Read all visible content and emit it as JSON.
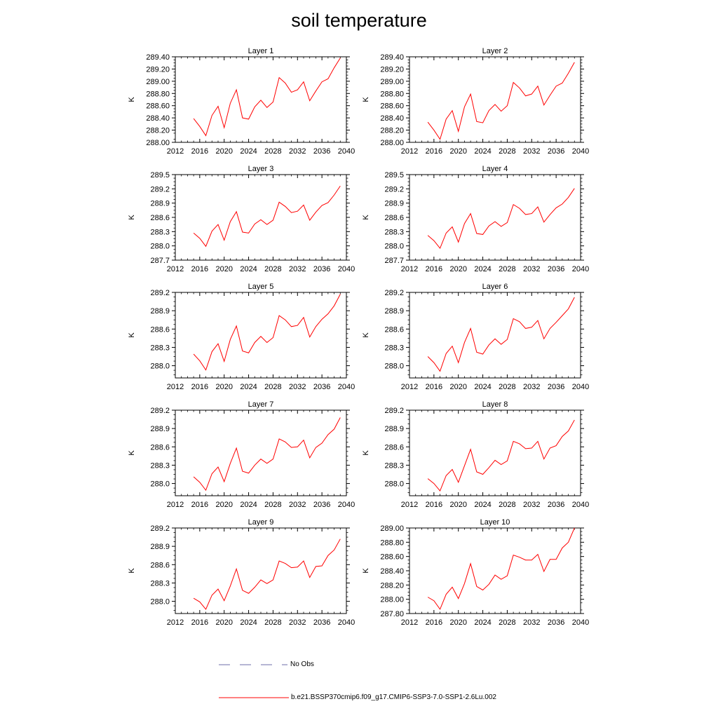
{
  "title": "soil temperature",
  "legend": {
    "obs_label": "No Obs",
    "obs_color": "#6e6ea8",
    "model_label": "b.e21.BSSP370cmip6.f09_g17.CMIP6-SSP3-7.0-SSP1-2.6Lu.002",
    "model_color": "#ff0000"
  },
  "chart_data": [
    {
      "type": "line",
      "title": "Layer 1",
      "ylabel": "K",
      "xlim": [
        2012,
        2040
      ],
      "xticks": [
        "2012",
        "2016",
        "2020",
        "2024",
        "2028",
        "2032",
        "2036",
        "2040"
      ],
      "ylim": [
        288.0,
        289.4
      ],
      "yticks": [
        "288.00",
        "288.20",
        "288.40",
        "288.60",
        "288.80",
        "289.00",
        "289.20",
        "289.40"
      ],
      "series": [
        {
          "x": [
            2015,
            2016,
            2017,
            2018,
            2019,
            2020,
            2021,
            2022,
            2023,
            2024,
            2025,
            2026,
            2027,
            2028,
            2029,
            2030,
            2031,
            2032,
            2033,
            2034,
            2035,
            2036,
            2037,
            2038,
            2039
          ],
          "y": [
            288.39,
            288.26,
            288.11,
            288.44,
            288.59,
            288.24,
            288.64,
            288.86,
            288.4,
            288.38,
            288.58,
            288.69,
            288.57,
            288.66,
            289.06,
            288.97,
            288.82,
            288.86,
            288.99,
            288.68,
            288.84,
            288.99,
            289.04,
            289.22,
            289.38
          ]
        }
      ]
    },
    {
      "type": "line",
      "title": "Layer 2",
      "ylabel": "K",
      "xlim": [
        2012,
        2040
      ],
      "xticks": [
        "2012",
        "2016",
        "2020",
        "2024",
        "2028",
        "2032",
        "2036",
        "2040"
      ],
      "ylim": [
        288.0,
        289.4
      ],
      "yticks": [
        "288.00",
        "288.20",
        "288.40",
        "288.60",
        "288.80",
        "289.00",
        "289.20",
        "289.40"
      ],
      "series": [
        {
          "x": [
            2015,
            2016,
            2017,
            2018,
            2019,
            2020,
            2021,
            2022,
            2023,
            2024,
            2025,
            2026,
            2027,
            2028,
            2029,
            2030,
            2031,
            2032,
            2033,
            2034,
            2035,
            2036,
            2037,
            2038,
            2039
          ],
          "y": [
            288.33,
            288.2,
            288.05,
            288.38,
            288.52,
            288.18,
            288.58,
            288.79,
            288.34,
            288.32,
            288.52,
            288.62,
            288.51,
            288.6,
            288.98,
            288.89,
            288.76,
            288.79,
            288.92,
            288.61,
            288.77,
            288.92,
            288.97,
            289.13,
            289.31
          ]
        }
      ]
    },
    {
      "type": "line",
      "title": "Layer 3",
      "ylabel": "K",
      "xlim": [
        2012,
        2040
      ],
      "xticks": [
        "2012",
        "2016",
        "2020",
        "2024",
        "2028",
        "2032",
        "2036",
        "2040"
      ],
      "ylim": [
        287.7,
        289.5
      ],
      "yticks": [
        "287.7",
        "288.0",
        "288.3",
        "288.6",
        "288.9",
        "289.2",
        "289.5"
      ],
      "series": [
        {
          "x": [
            2015,
            2016,
            2017,
            2018,
            2019,
            2020,
            2021,
            2022,
            2023,
            2024,
            2025,
            2026,
            2027,
            2028,
            2029,
            2030,
            2031,
            2032,
            2033,
            2034,
            2035,
            2036,
            2037,
            2038,
            2039
          ],
          "y": [
            288.27,
            288.16,
            287.99,
            288.31,
            288.45,
            288.12,
            288.51,
            288.72,
            288.29,
            288.27,
            288.46,
            288.55,
            288.45,
            288.54,
            288.92,
            288.83,
            288.7,
            288.73,
            288.86,
            288.54,
            288.71,
            288.85,
            288.91,
            289.07,
            289.26
          ]
        }
      ]
    },
    {
      "type": "line",
      "title": "Layer 4",
      "ylabel": "K",
      "xlim": [
        2012,
        2040
      ],
      "xticks": [
        "2012",
        "2016",
        "2020",
        "2024",
        "2028",
        "2032",
        "2036",
        "2040"
      ],
      "ylim": [
        287.7,
        289.5
      ],
      "yticks": [
        "287.7",
        "288.0",
        "288.3",
        "288.6",
        "288.9",
        "289.2",
        "289.5"
      ],
      "series": [
        {
          "x": [
            2015,
            2016,
            2017,
            2018,
            2019,
            2020,
            2021,
            2022,
            2023,
            2024,
            2025,
            2026,
            2027,
            2028,
            2029,
            2030,
            2031,
            2032,
            2033,
            2034,
            2035,
            2036,
            2037,
            2038,
            2039
          ],
          "y": [
            288.22,
            288.11,
            287.95,
            288.27,
            288.4,
            288.08,
            288.47,
            288.68,
            288.26,
            288.24,
            288.42,
            288.51,
            288.41,
            288.49,
            288.87,
            288.79,
            288.66,
            288.68,
            288.82,
            288.5,
            288.66,
            288.8,
            288.88,
            289.02,
            289.21
          ]
        }
      ]
    },
    {
      "type": "line",
      "title": "Layer 5",
      "ylabel": "K",
      "xlim": [
        2012,
        2040
      ],
      "xticks": [
        "2012",
        "2016",
        "2020",
        "2024",
        "2028",
        "2032",
        "2036",
        "2040"
      ],
      "ylim": [
        287.8,
        289.2
      ],
      "yticks": [
        "288.0",
        "288.3",
        "288.6",
        "288.9",
        "289.2"
      ],
      "series": [
        {
          "x": [
            2015,
            2016,
            2017,
            2018,
            2019,
            2020,
            2021,
            2022,
            2023,
            2024,
            2025,
            2026,
            2027,
            2028,
            2029,
            2030,
            2031,
            2032,
            2033,
            2034,
            2035,
            2036,
            2037,
            2038,
            2039
          ],
          "y": [
            288.19,
            288.08,
            287.93,
            288.23,
            288.36,
            288.07,
            288.43,
            288.65,
            288.24,
            288.21,
            288.38,
            288.48,
            288.38,
            288.46,
            288.82,
            288.75,
            288.64,
            288.66,
            288.79,
            288.47,
            288.64,
            288.76,
            288.85,
            288.98,
            289.17
          ]
        }
      ]
    },
    {
      "type": "line",
      "title": "Layer 6",
      "ylabel": "K",
      "xlim": [
        2012,
        2040
      ],
      "xticks": [
        "2012",
        "2016",
        "2020",
        "2024",
        "2028",
        "2032",
        "2036",
        "2040"
      ],
      "ylim": [
        287.8,
        289.2
      ],
      "yticks": [
        "288.0",
        "288.3",
        "288.6",
        "288.9",
        "289.2"
      ],
      "series": [
        {
          "x": [
            2015,
            2016,
            2017,
            2018,
            2019,
            2020,
            2021,
            2022,
            2023,
            2024,
            2025,
            2026,
            2027,
            2028,
            2029,
            2030,
            2031,
            2032,
            2033,
            2034,
            2035,
            2036,
            2037,
            2038,
            2039
          ],
          "y": [
            288.15,
            288.05,
            287.91,
            288.2,
            288.32,
            288.05,
            288.38,
            288.61,
            288.22,
            288.19,
            288.34,
            288.44,
            288.35,
            288.43,
            288.77,
            288.72,
            288.61,
            288.63,
            288.74,
            288.44,
            288.61,
            288.71,
            288.82,
            288.93,
            289.12
          ]
        }
      ]
    },
    {
      "type": "line",
      "title": "Layer 7",
      "ylabel": "K",
      "xlim": [
        2012,
        2040
      ],
      "xticks": [
        "2012",
        "2016",
        "2020",
        "2024",
        "2028",
        "2032",
        "2036",
        "2040"
      ],
      "ylim": [
        287.8,
        289.2
      ],
      "yticks": [
        "288.0",
        "288.3",
        "288.6",
        "288.9",
        "289.2"
      ],
      "series": [
        {
          "x": [
            2015,
            2016,
            2017,
            2018,
            2019,
            2020,
            2021,
            2022,
            2023,
            2024,
            2025,
            2026,
            2027,
            2028,
            2029,
            2030,
            2031,
            2032,
            2033,
            2034,
            2035,
            2036,
            2037,
            2038,
            2039
          ],
          "y": [
            288.11,
            288.02,
            287.89,
            288.16,
            288.27,
            288.03,
            288.33,
            288.58,
            288.2,
            288.17,
            288.3,
            288.4,
            288.33,
            288.4,
            288.73,
            288.68,
            288.59,
            288.6,
            288.71,
            288.42,
            288.59,
            288.66,
            288.8,
            288.89,
            289.08
          ]
        }
      ]
    },
    {
      "type": "line",
      "title": "Layer 8",
      "ylabel": "K",
      "xlim": [
        2012,
        2040
      ],
      "xticks": [
        "2012",
        "2016",
        "2020",
        "2024",
        "2028",
        "2032",
        "2036",
        "2040"
      ],
      "ylim": [
        287.8,
        289.2
      ],
      "yticks": [
        "288.0",
        "288.3",
        "288.6",
        "288.9",
        "289.2"
      ],
      "series": [
        {
          "x": [
            2015,
            2016,
            2017,
            2018,
            2019,
            2020,
            2021,
            2022,
            2023,
            2024,
            2025,
            2026,
            2027,
            2028,
            2029,
            2030,
            2031,
            2032,
            2033,
            2034,
            2035,
            2036,
            2037,
            2038,
            2039
          ],
          "y": [
            288.08,
            288.0,
            287.88,
            288.13,
            288.23,
            288.02,
            288.29,
            288.56,
            288.19,
            288.15,
            288.26,
            288.38,
            288.31,
            288.37,
            288.69,
            288.65,
            288.57,
            288.58,
            288.69,
            288.4,
            288.58,
            288.62,
            288.77,
            288.86,
            289.04
          ]
        }
      ]
    },
    {
      "type": "line",
      "title": "Layer 9",
      "ylabel": "K",
      "xlim": [
        2012,
        2040
      ],
      "xticks": [
        "2012",
        "2016",
        "2020",
        "2024",
        "2028",
        "2032",
        "2036",
        "2040"
      ],
      "ylim": [
        287.8,
        289.2
      ],
      "yticks": [
        "288.0",
        "288.3",
        "288.6",
        "288.9",
        "289.2"
      ],
      "series": [
        {
          "x": [
            2015,
            2016,
            2017,
            2018,
            2019,
            2020,
            2021,
            2022,
            2023,
            2024,
            2025,
            2026,
            2027,
            2028,
            2029,
            2030,
            2031,
            2032,
            2033,
            2034,
            2035,
            2036,
            2037,
            2038,
            2039
          ],
          "y": [
            288.05,
            287.99,
            287.87,
            288.1,
            288.2,
            288.01,
            288.25,
            288.53,
            288.18,
            288.13,
            288.23,
            288.35,
            288.29,
            288.35,
            288.66,
            288.62,
            288.55,
            288.56,
            288.66,
            288.39,
            288.57,
            288.58,
            288.75,
            288.84,
            289.02
          ]
        }
      ]
    },
    {
      "type": "line",
      "title": "Layer 10",
      "ylabel": "K",
      "xlim": [
        2012,
        2040
      ],
      "xticks": [
        "2012",
        "2016",
        "2020",
        "2024",
        "2028",
        "2032",
        "2036",
        "2040"
      ],
      "ylim": [
        287.8,
        289.0
      ],
      "yticks": [
        "287.80",
        "288.00",
        "288.20",
        "288.40",
        "288.60",
        "288.80",
        "289.00"
      ],
      "series": [
        {
          "x": [
            2015,
            2016,
            2017,
            2018,
            2019,
            2020,
            2021,
            2022,
            2023,
            2024,
            2025,
            2026,
            2027,
            2028,
            2029,
            2030,
            2031,
            2032,
            2033,
            2034,
            2035,
            2036,
            2037,
            2038,
            2039
          ],
          "y": [
            288.03,
            287.98,
            287.86,
            288.07,
            288.17,
            288.01,
            288.22,
            288.5,
            288.18,
            288.13,
            288.21,
            288.34,
            288.28,
            288.33,
            288.62,
            288.59,
            288.55,
            288.55,
            288.63,
            288.39,
            288.56,
            288.56,
            288.72,
            288.8,
            289.0
          ]
        }
      ]
    }
  ]
}
